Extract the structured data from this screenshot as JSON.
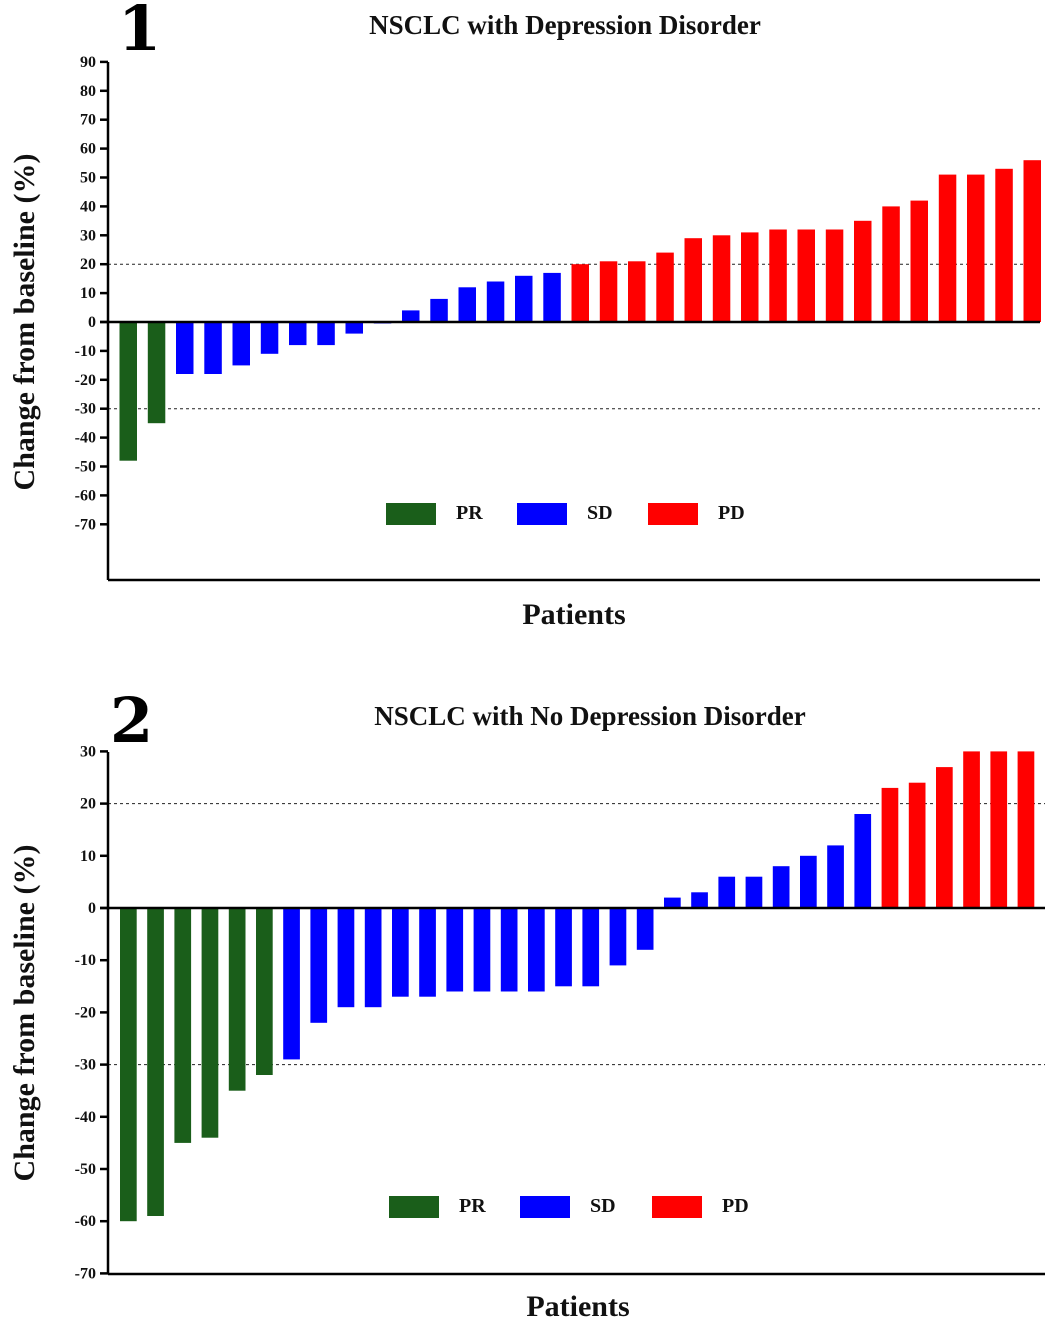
{
  "chart_data": [
    {
      "type": "bar",
      "panel_label": "1",
      "title": "NSCLC with Depression Disorder",
      "xlabel": "Patients",
      "ylabel": "Change from baseline (%)",
      "ylim": [
        -90,
        90
      ],
      "yticks": [
        90,
        80,
        70,
        60,
        50,
        40,
        30,
        20,
        10,
        0,
        -10,
        -20,
        -30,
        -40,
        -50,
        -60,
        -70
      ],
      "reference_lines": [
        20,
        -30
      ],
      "legend": [
        {
          "label": "PR",
          "color": "#1a5e1a"
        },
        {
          "label": "SD",
          "color": "#0000ff"
        },
        {
          "label": "PD",
          "color": "#ff0000"
        }
      ],
      "categories": [
        "PR",
        "PR",
        "SD",
        "SD",
        "SD",
        "SD",
        "SD",
        "SD",
        "SD",
        "SD",
        "SD",
        "SD",
        "SD",
        "SD",
        "SD",
        "SD",
        "PD",
        "PD",
        "PD",
        "PD",
        "PD",
        "PD",
        "PD",
        "PD",
        "PD",
        "PD",
        "PD",
        "PD",
        "PD",
        "PD",
        "PD",
        "PD",
        "PD"
      ],
      "values": [
        -48,
        -35,
        -18,
        -18,
        -15,
        -11,
        -8,
        -8,
        -4,
        -0.5,
        4,
        8,
        12,
        14,
        16,
        17,
        20,
        21,
        21,
        24,
        29,
        30,
        31,
        32,
        32,
        32,
        35,
        40,
        42,
        51,
        51,
        53,
        56
      ]
    },
    {
      "type": "bar",
      "panel_label": "2",
      "title": "NSCLC with No Depression Disorder",
      "xlabel": "Patients",
      "ylabel": "Change from baseline (%)",
      "ylim": [
        -70,
        30
      ],
      "yticks": [
        30,
        20,
        10,
        0,
        -10,
        -20,
        -30,
        -40,
        -50,
        -60,
        -70
      ],
      "reference_lines": [
        20,
        -30
      ],
      "legend": [
        {
          "label": "PR",
          "color": "#1a5e1a"
        },
        {
          "label": "SD",
          "color": "#0000ff"
        },
        {
          "label": "PD",
          "color": "#ff0000"
        }
      ],
      "categories": [
        "PR",
        "PR",
        "PR",
        "PR",
        "PR",
        "PR",
        "SD",
        "SD",
        "SD",
        "SD",
        "SD",
        "SD",
        "SD",
        "SD",
        "SD",
        "SD",
        "SD",
        "SD",
        "SD",
        "SD",
        "SD",
        "SD",
        "SD",
        "SD",
        "SD",
        "SD",
        "SD",
        "SD",
        "PD",
        "PD",
        "PD",
        "PD",
        "PD",
        "PD"
      ],
      "values": [
        -60,
        -59,
        -45,
        -44,
        -35,
        -32,
        -29,
        -22,
        -19,
        -19,
        -17,
        -17,
        -16,
        -16,
        -16,
        -16,
        -15,
        -15,
        -11,
        -8,
        2,
        3,
        6,
        6,
        8,
        10,
        12,
        18,
        23,
        24,
        27,
        30,
        30,
        30
      ]
    }
  ]
}
